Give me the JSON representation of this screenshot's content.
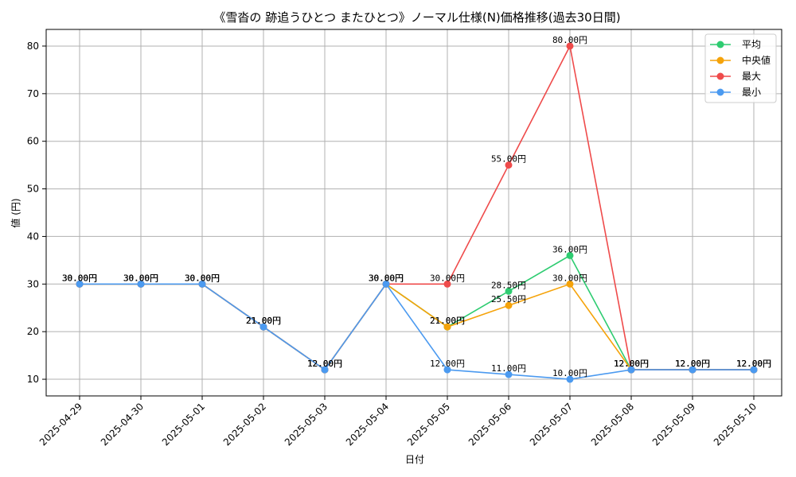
{
  "chart_data": {
    "type": "line",
    "title": "《雪沓の 跡追うひとつ またひとつ》ノーマル仕様(N)価格推移(過去30日間)",
    "xlabel": "日付",
    "ylabel": "値 (円)",
    "ylim": [
      6.5,
      83.5
    ],
    "yticks": [
      10,
      20,
      30,
      40,
      50,
      60,
      70,
      80
    ],
    "grid": true,
    "legend_position": "top-right",
    "categories": [
      "2025-04-29",
      "2025-04-30",
      "2025-05-01",
      "2025-05-02",
      "2025-05-03",
      "2025-05-04",
      "2025-05-05",
      "2025-05-06",
      "2025-05-07",
      "2025-05-08",
      "2025-05-09",
      "2025-05-10"
    ],
    "series": [
      {
        "name": "平均",
        "color": "#2ecc71",
        "values": [
          30,
          30,
          30,
          21,
          12,
          30,
          21,
          28.5,
          36,
          12,
          12,
          12
        ],
        "labels": [
          "30.00円",
          "30.00円",
          "30.00円",
          "21.00円",
          "12.00円",
          "30.00円",
          "21.00円",
          "28.50円",
          "36.00円",
          "12.00円",
          "12.00円",
          "12.00円"
        ]
      },
      {
        "name": "中央値",
        "color": "#f5a30a",
        "values": [
          30,
          30,
          30,
          21,
          12,
          30,
          21,
          25.5,
          30,
          12,
          12,
          12
        ],
        "labels": [
          "30.00円",
          "30.00円",
          "30.00円",
          "21.00円",
          "12.00円",
          "30.00円",
          "21.00円",
          "25.50円",
          "30.00円",
          "12.00円",
          "12.00円",
          "12.00円"
        ]
      },
      {
        "name": "最大",
        "color": "#ef4b4b",
        "values": [
          30,
          30,
          30,
          21,
          12,
          30,
          30,
          55,
          80,
          12,
          12,
          12
        ],
        "labels": [
          "30.00円",
          "30.00円",
          "30.00円",
          "21.00円",
          "12.00円",
          "30.00円",
          "30.00円",
          "55.00円",
          "80.00円",
          "12.00円",
          "12.00円",
          "12.00円"
        ]
      },
      {
        "name": "最小",
        "color": "#4b9af0",
        "values": [
          30,
          30,
          30,
          21,
          12,
          30,
          12,
          11,
          10,
          12,
          12,
          12
        ],
        "labels": [
          "30.00円",
          "30.00円",
          "30.00円",
          "21.00円",
          "12.00円",
          "30.00円",
          "12.00円",
          "11.00円",
          "10.00円",
          "12.00円",
          "12.00円",
          "12.00円"
        ]
      }
    ]
  }
}
